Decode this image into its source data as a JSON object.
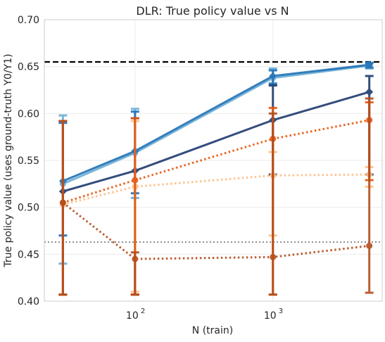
{
  "chart_data": {
    "type": "line",
    "title": "DLR: True policy value vs N",
    "xlabel": "N (train)",
    "ylabel": "True policy value (uses ground-truth Y0/Y1)",
    "xscale": "log",
    "xlim": [
      22,
      6200
    ],
    "ylim": [
      0.4,
      0.7
    ],
    "yticks": [
      "0.40",
      "0.45",
      "0.50",
      "0.55",
      "0.60",
      "0.65",
      "0.70"
    ],
    "xticks": [
      {
        "value": 100,
        "base": "10",
        "exp": "2"
      },
      {
        "value": 1000,
        "base": "10",
        "exp": "3"
      }
    ],
    "grid": true,
    "reference_lines": [
      {
        "y": 0.655,
        "style": "dashed",
        "color": "#000000"
      },
      {
        "y": 0.463,
        "style": "dotted",
        "color": "#808080"
      }
    ],
    "series": [
      {
        "x": [
          30,
          100,
          1000,
          5000
        ],
        "y": [
          0.525,
          0.558,
          0.638,
          0.651
        ],
        "ylow": [
          0.44,
          0.51,
          0.63,
          0.648
        ],
        "yhigh": [
          0.598,
          0.605,
          0.648,
          0.654
        ],
        "color": "#6baed6",
        "linestyle": "solid",
        "marker": "circle"
      },
      {
        "x": [
          30,
          100,
          1000,
          5000
        ],
        "y": [
          0.528,
          0.56,
          0.64,
          0.652
        ],
        "ylow": [
          0.47,
          0.515,
          0.632,
          0.649
        ],
        "yhigh": [
          0.59,
          0.602,
          0.646,
          0.654
        ],
        "color": "#2171b5",
        "linestyle": "solid",
        "marker": "diamond"
      },
      {
        "x": [
          30,
          100,
          1000,
          5000
        ],
        "y": [
          0.517,
          0.539,
          0.593,
          0.623
        ],
        "ylow": [
          0.407,
          0.407,
          0.535,
          0.535
        ],
        "yhigh": [
          0.592,
          0.595,
          0.63,
          0.64
        ],
        "color": "#1f3a6e",
        "linestyle": "solid",
        "marker": "diamond"
      },
      {
        "x": [
          30,
          100,
          1000,
          5000
        ],
        "y": [
          0.503,
          0.522,
          0.534,
          0.535
        ],
        "ylow": [
          0.407,
          0.41,
          0.47,
          0.522
        ],
        "yhigh": [
          0.592,
          0.592,
          0.559,
          0.543
        ],
        "color": "#fdbe85",
        "linestyle": "dotted",
        "marker": "circle"
      },
      {
        "x": [
          30,
          100,
          1000,
          5000
        ],
        "y": [
          0.505,
          0.529,
          0.573,
          0.593
        ],
        "ylow": [
          0.407,
          0.407,
          0.407,
          0.529
        ],
        "yhigh": [
          0.592,
          0.595,
          0.606,
          0.612
        ],
        "color": "#e6550d",
        "linestyle": "dotted",
        "marker": "circle"
      },
      {
        "x": [
          30,
          100,
          1000,
          5000
        ],
        "y": [
          0.505,
          0.445,
          0.447,
          0.459
        ],
        "ylow": [
          0.407,
          0.407,
          0.407,
          0.409
        ],
        "yhigh": [
          0.592,
          0.452,
          0.6,
          0.616
        ],
        "color": "#b34d1c",
        "linestyle": "dotted",
        "marker": "circle"
      }
    ]
  }
}
